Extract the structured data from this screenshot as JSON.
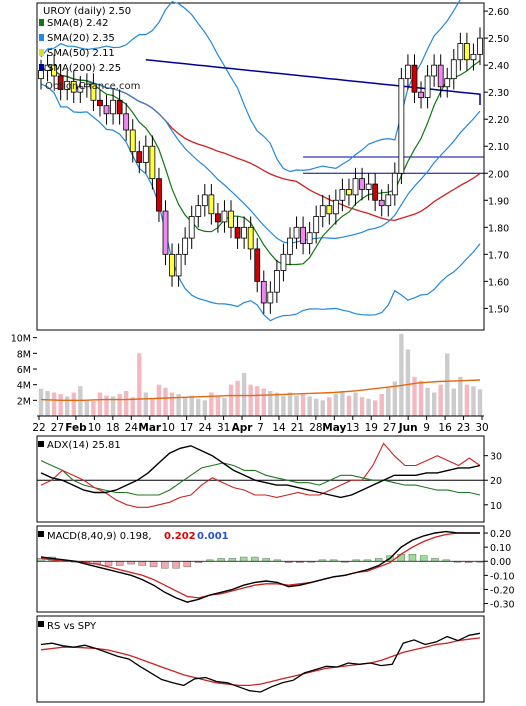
{
  "chart_data": [
    {
      "type": "candlestick",
      "panel": "price",
      "title": "UROY (daily) 2.50",
      "watermark": "OptionChance.com",
      "legend": [
        {
          "label": "SMA(8) 2.42",
          "color": "#117711"
        },
        {
          "label": "SMA(20) 2.35",
          "color": "#2288dd"
        },
        {
          "label": "SMA(50) 2.11",
          "color": "#dddd22"
        },
        {
          "label": "SMA(200) 2.25",
          "color": "#000099"
        }
      ],
      "yticks": [
        1.5,
        1.6,
        1.7,
        1.8,
        1.9,
        2.0,
        2.1,
        2.2,
        2.3,
        2.4,
        2.5,
        2.6
      ],
      "ylim": [
        1.42,
        2.63
      ],
      "horizontal_lines": [
        2.06,
        2.0
      ],
      "closes": [
        2.38,
        2.4,
        2.36,
        2.31,
        2.34,
        2.3,
        2.32,
        2.33,
        2.27,
        2.25,
        2.22,
        2.27,
        2.22,
        2.16,
        2.08,
        2.04,
        2.1,
        1.98,
        1.86,
        1.7,
        1.62,
        1.7,
        1.76,
        1.84,
        1.88,
        1.92,
        1.85,
        1.82,
        1.86,
        1.8,
        1.76,
        1.8,
        1.72,
        1.6,
        1.52,
        1.56,
        1.64,
        1.7,
        1.76,
        1.8,
        1.74,
        1.78,
        1.84,
        1.88,
        1.85,
        1.9,
        1.94,
        1.92,
        1.98,
        1.94,
        1.96,
        1.9,
        1.88,
        1.92,
        2.0,
        2.35,
        2.4,
        2.3,
        2.28,
        2.36,
        2.4,
        2.32,
        2.35,
        2.42,
        2.48,
        2.42,
        2.44,
        2.5
      ]
    },
    {
      "type": "bar",
      "panel": "volume",
      "yticks": [
        "10M",
        "8M",
        "6M",
        "4M",
        "2M"
      ],
      "ylim": [
        0,
        12
      ],
      "xticks": [
        "22",
        "27",
        "Feb",
        "10",
        "18",
        "24",
        "Mar",
        "10",
        "17",
        "24",
        "31",
        "Apr",
        "7",
        "14",
        "21",
        "28",
        "May",
        "13",
        "19",
        "27",
        "Jun",
        "9",
        "16",
        "23",
        "30"
      ],
      "values": [
        3.5,
        3.2,
        3.0,
        2.8,
        2.5,
        3.0,
        3.8,
        2.0,
        1.9,
        3.0,
        2.6,
        2.5,
        2.8,
        3.2,
        2.4,
        8.0,
        3.0,
        2.2,
        4.0,
        3.6,
        3.0,
        2.8,
        2.4,
        2.6,
        2.2,
        2.0,
        3.0,
        2.5,
        2.3,
        4.0,
        4.5,
        5.5,
        4.0,
        3.8,
        3.5,
        3.2,
        3.0,
        2.6,
        3.0,
        2.6,
        2.8,
        2.5,
        2.2,
        2.0,
        2.4,
        2.8,
        3.2,
        2.6,
        3.0,
        2.4,
        2.2,
        2.0,
        2.8,
        3.6,
        4.4,
        10.5,
        8.5,
        5.0,
        4.5,
        3.6,
        3.0,
        4.0,
        8.0,
        3.5,
        5.0,
        4.0,
        3.8,
        3.4
      ],
      "avg_line": [
        2.1,
        2.0,
        2.0,
        2.1,
        2.1,
        2.2,
        2.3,
        2.4,
        2.5,
        2.6,
        2.6,
        2.7,
        2.8,
        2.9,
        3.0,
        3.2,
        3.5,
        3.8,
        4.2,
        4.4,
        4.5,
        4.6
      ]
    },
    {
      "type": "line",
      "panel": "ADX",
      "label": "ADX(14) 25.81",
      "yticks": [
        30,
        20,
        10
      ],
      "ylim": [
        3,
        38
      ],
      "adx": [
        23,
        21,
        20,
        18,
        16,
        15,
        15,
        16,
        18,
        20,
        23,
        27,
        31,
        33,
        34,
        32,
        30,
        27,
        24,
        22,
        20,
        19,
        18,
        18,
        17,
        16,
        15,
        14,
        13,
        14,
        16,
        18,
        20,
        22,
        22,
        22,
        23,
        23,
        24,
        25,
        25,
        26
      ],
      "plus_di": [
        28,
        26,
        24,
        20,
        18,
        17,
        16,
        15,
        15,
        14,
        14,
        14,
        16,
        19,
        22,
        25,
        26,
        27,
        26,
        24,
        24,
        22,
        21,
        20,
        19,
        19,
        18,
        20,
        22,
        22,
        21,
        20,
        20,
        19,
        18,
        18,
        17,
        16,
        16,
        15,
        15,
        14
      ],
      "minus_di": [
        18,
        20,
        24,
        22,
        20,
        17,
        15,
        12,
        10,
        9,
        9,
        10,
        11,
        13,
        14,
        18,
        21,
        19,
        17,
        16,
        14,
        14,
        13,
        14,
        15,
        14,
        14,
        16,
        18,
        20,
        20,
        26,
        35,
        30,
        26,
        26,
        28,
        30,
        28,
        26,
        29,
        26
      ]
    },
    {
      "type": "line",
      "panel": "MACD",
      "label": "MACD(8,40,9) 0.198,",
      "label_red": "0.202",
      "label_blue": "0.001",
      "yticks": [
        0.2,
        0.1,
        0.0,
        -0.1,
        -0.2,
        -0.3
      ],
      "ytick_labels": [
        "0.20",
        "0.10",
        "0.00",
        "-0.10",
        "-0.20",
        "-0.30"
      ],
      "ylim": [
        -0.36,
        0.25
      ],
      "macd": [
        0.03,
        0.02,
        0.01,
        0.0,
        -0.02,
        -0.04,
        -0.06,
        -0.08,
        -0.1,
        -0.13,
        -0.17,
        -0.22,
        -0.26,
        -0.29,
        -0.27,
        -0.24,
        -0.22,
        -0.2,
        -0.17,
        -0.15,
        -0.14,
        -0.15,
        -0.18,
        -0.17,
        -0.15,
        -0.13,
        -0.11,
        -0.1,
        -0.08,
        -0.06,
        -0.03,
        0.02,
        0.1,
        0.15,
        0.18,
        0.2,
        0.21,
        0.2,
        0.2,
        0.2
      ],
      "signal": [
        0.02,
        0.01,
        0.0,
        0.0,
        -0.01,
        -0.02,
        -0.04,
        -0.06,
        -0.08,
        -0.1,
        -0.13,
        -0.17,
        -0.21,
        -0.25,
        -0.26,
        -0.24,
        -0.23,
        -0.21,
        -0.19,
        -0.17,
        -0.16,
        -0.16,
        -0.17,
        -0.16,
        -0.15,
        -0.13,
        -0.11,
        -0.1,
        -0.08,
        -0.07,
        -0.04,
        -0.01,
        0.05,
        0.1,
        0.14,
        0.17,
        0.19,
        0.2,
        0.2,
        0.2
      ],
      "hist": [
        0.02,
        0.03,
        0.01,
        0.0,
        -0.01,
        -0.02,
        -0.03,
        -0.03,
        -0.02,
        -0.03,
        -0.04,
        -0.05,
        -0.05,
        -0.04,
        -0.01,
        0.01,
        0.02,
        0.02,
        0.03,
        0.03,
        0.02,
        0.01,
        -0.01,
        -0.01,
        0.0,
        0.01,
        0.01,
        0.0,
        0.01,
        0.01,
        0.02,
        0.04,
        0.05,
        0.05,
        0.04,
        0.02,
        0.01,
        0.0,
        -0.01,
        0.0
      ]
    },
    {
      "type": "line",
      "panel": "RS",
      "label": "RS vs SPY",
      "rs": [
        0.78,
        0.8,
        0.76,
        0.74,
        0.77,
        0.72,
        0.66,
        0.6,
        0.56,
        0.45,
        0.35,
        0.25,
        0.2,
        0.16,
        0.26,
        0.28,
        0.22,
        0.2,
        0.14,
        0.08,
        0.06,
        0.14,
        0.2,
        0.24,
        0.35,
        0.4,
        0.45,
        0.44,
        0.5,
        0.48,
        0.5,
        0.46,
        0.48,
        0.8,
        0.85,
        0.78,
        0.82,
        0.9,
        0.84,
        0.92,
        0.95
      ],
      "rs_avg": [
        0.7,
        0.72,
        0.74,
        0.74,
        0.73,
        0.72,
        0.7,
        0.66,
        0.62,
        0.56,
        0.5,
        0.44,
        0.38,
        0.32,
        0.28,
        0.24,
        0.2,
        0.18,
        0.16,
        0.16,
        0.18,
        0.22,
        0.26,
        0.3,
        0.34,
        0.38,
        0.42,
        0.44,
        0.46,
        0.48,
        0.5,
        0.54,
        0.6,
        0.66,
        0.7,
        0.74,
        0.78,
        0.8,
        0.84,
        0.86,
        0.88
      ]
    }
  ]
}
